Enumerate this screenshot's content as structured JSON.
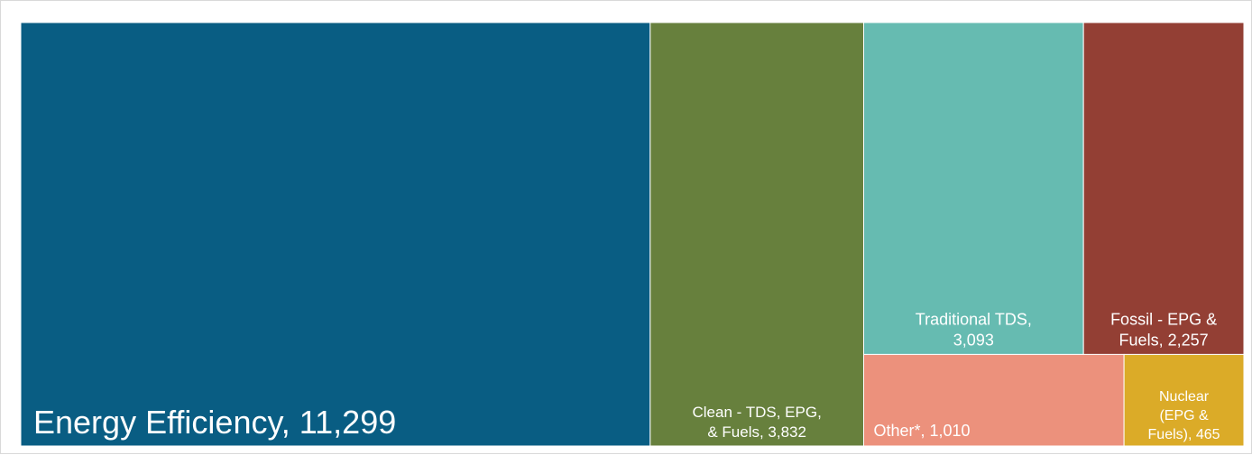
{
  "chart_data": {
    "type": "treemap",
    "tiles": [
      {
        "name": "Energy Efficiency",
        "value": 11299,
        "label_lines": [
          "Energy Efficiency, 11,299"
        ],
        "color": "#095d83"
      },
      {
        "name": "Clean - TDS, EPG, & Fuels",
        "value": 3832,
        "label_lines": [
          "Clean - TDS, EPG,",
          "& Fuels, 3,832"
        ],
        "color": "#67803d"
      },
      {
        "name": "Traditional TDS",
        "value": 3093,
        "label_lines": [
          "Traditional TDS,",
          "3,093"
        ],
        "color": "#66bbb1"
      },
      {
        "name": "Fossil - EPG & Fuels",
        "value": 2257,
        "label_lines": [
          "Fossil - EPG &",
          "Fuels, 2,257"
        ],
        "color": "#933f34"
      },
      {
        "name": "Other*",
        "value": 1010,
        "label_lines": [
          "Other*, 1,010"
        ],
        "color": "#ec917c"
      },
      {
        "name": "Nuclear (EPG & Fuels)",
        "value": 465,
        "label_lines": [
          "Nuclear",
          "(EPG &",
          "Fuels), 465"
        ],
        "color": "#dbab28"
      }
    ]
  }
}
